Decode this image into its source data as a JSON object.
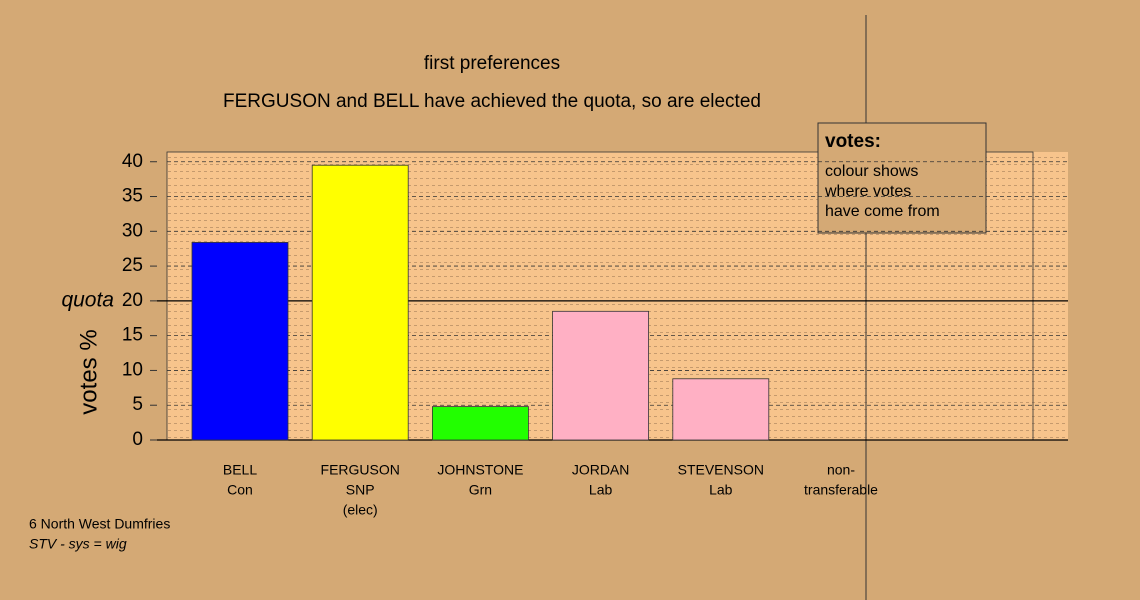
{
  "chart_data": {
    "type": "bar",
    "title": "first preferences",
    "subtitle": "FERGUSON and BELL have achieved the quota, so are elected",
    "ylabel": "votes %",
    "categories": [
      [
        "BELL",
        "Con"
      ],
      [
        "FERGUSON",
        "SNP",
        "(elec)"
      ],
      [
        "JOHNSTONE",
        "Grn"
      ],
      [
        "JORDAN",
        "Lab"
      ],
      [
        "STEVENSON",
        "Lab"
      ],
      [
        "non-",
        "transferable"
      ]
    ],
    "values": [
      28.4,
      39.5,
      4.8,
      18.5,
      8.8,
      null
    ],
    "colors": [
      "#0000ff",
      "#ffff00",
      "#22ff00",
      "#ffb0c4",
      "#ffb0c4",
      null
    ],
    "ylim": [
      0,
      41.4
    ],
    "yticks": [
      0,
      5,
      10,
      15,
      20,
      25,
      30,
      35,
      40
    ],
    "grid": true,
    "quota": 20,
    "quota_label": "quota",
    "legend": {
      "title": "votes:",
      "lines": [
        "colour shows",
        "where votes",
        "have come from"
      ]
    },
    "footnotes": [
      "6 North West Dumfries",
      "STV - sys = wig"
    ]
  }
}
